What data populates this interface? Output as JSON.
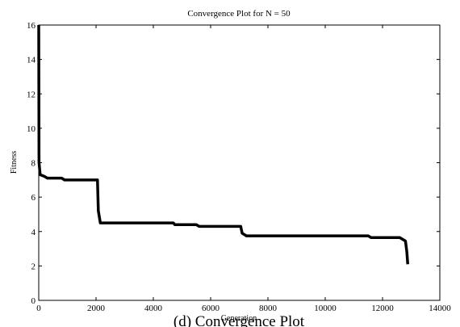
{
  "chart_data": {
    "type": "line",
    "title": "Convergence Plot for N = 50",
    "xlabel": "Generation",
    "ylabel": "Fitness",
    "caption": "(d) Convergence Plot",
    "x": [
      0,
      10,
      50,
      200,
      300,
      800,
      900,
      2050,
      2080,
      2150,
      4700,
      4750,
      5500,
      5600,
      7050,
      7100,
      7250,
      11500,
      11600,
      12600,
      12700,
      12800,
      12850,
      12880
    ],
    "series": [
      {
        "name": "Fitness",
        "color": "#000000",
        "values": [
          16,
          8,
          7.3,
          7.2,
          7.1,
          7.1,
          7.0,
          7.0,
          5.2,
          4.5,
          4.5,
          4.4,
          4.4,
          4.3,
          4.3,
          3.9,
          3.75,
          3.75,
          3.65,
          3.65,
          3.55,
          3.45,
          2.8,
          2.1
        ]
      }
    ],
    "xlim": [
      0,
      14000
    ],
    "xticks": [
      0,
      2000,
      4000,
      6000,
      8000,
      10000,
      12000,
      14000
    ],
    "ylim": [
      0,
      16
    ],
    "yticks": [
      0,
      2,
      4,
      6,
      8,
      10,
      12,
      14,
      16
    ],
    "grid": false
  }
}
